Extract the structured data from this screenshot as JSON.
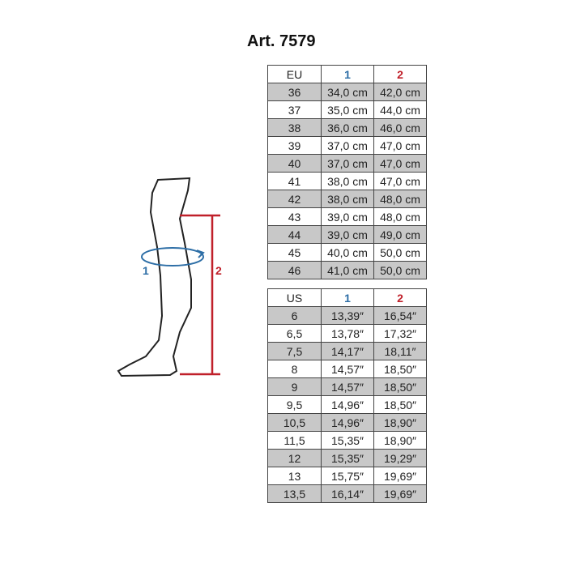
{
  "title": "Art. 7579",
  "colors": {
    "measure1": "#2d6ea6",
    "measure2": "#c0202a"
  },
  "diagram": {
    "label1": "1",
    "label2": "2"
  },
  "eu_table": {
    "headers": [
      "EU",
      "1",
      "2"
    ],
    "rows": [
      [
        "36",
        "34,0 cm",
        "42,0 cm"
      ],
      [
        "37",
        "35,0 cm",
        "44,0 cm"
      ],
      [
        "38",
        "36,0 cm",
        "46,0 cm"
      ],
      [
        "39",
        "37,0 cm",
        "47,0 cm"
      ],
      [
        "40",
        "37,0 cm",
        "47,0 cm"
      ],
      [
        "41",
        "38,0 cm",
        "47,0 cm"
      ],
      [
        "42",
        "38,0 cm",
        "48,0 cm"
      ],
      [
        "43",
        "39,0 cm",
        "48,0 cm"
      ],
      [
        "44",
        "39,0 cm",
        "49,0 cm"
      ],
      [
        "45",
        "40,0 cm",
        "50,0 cm"
      ],
      [
        "46",
        "41,0 cm",
        "50,0 cm"
      ]
    ]
  },
  "us_table": {
    "headers": [
      "US",
      "1",
      "2"
    ],
    "rows": [
      [
        "6",
        "13,39″",
        "16,54″"
      ],
      [
        "6,5",
        "13,78″",
        "17,32″"
      ],
      [
        "7,5",
        "14,17″",
        "18,11″"
      ],
      [
        "8",
        "14,57″",
        "18,50″"
      ],
      [
        "9",
        "14,57″",
        "18,50″"
      ],
      [
        "9,5",
        "14,96″",
        "18,50″"
      ],
      [
        "10,5",
        "14,96″",
        "18,90″"
      ],
      [
        "11,5",
        "15,35″",
        "18,90″"
      ],
      [
        "12",
        "15,35″",
        "19,29″"
      ],
      [
        "13",
        "15,75″",
        "19,69″"
      ],
      [
        "13,5",
        "16,14″",
        "19,69″"
      ]
    ]
  }
}
